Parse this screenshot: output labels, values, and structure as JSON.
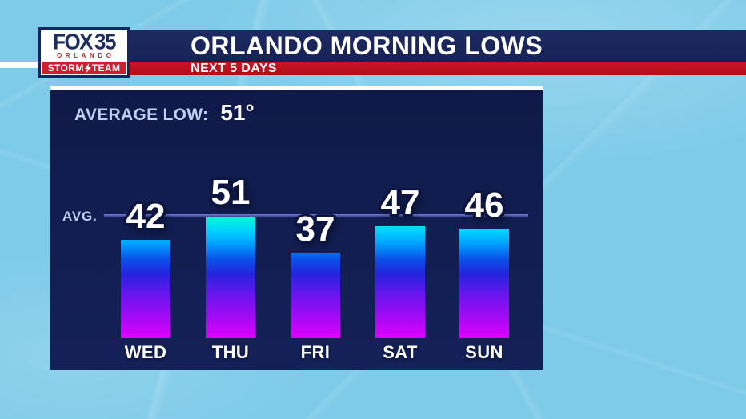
{
  "branding": {
    "station": "FOX",
    "channel": "35",
    "city": "ORLANDO",
    "storm": "STORM",
    "team": "TEAM",
    "bolt_icon": "lightning-bolt"
  },
  "header": {
    "title": "ORLANDO MORNING LOWS",
    "subtitle": "NEXT 5 DAYS"
  },
  "panel": {
    "average_label": "AVERAGE LOW:",
    "average_value": "51°",
    "avg_line_label": "AVG."
  },
  "chart_data": {
    "type": "bar",
    "title": "ORLANDO MORNING LOWS",
    "subtitle": "NEXT 5 DAYS",
    "categories": [
      "WED",
      "THU",
      "FRI",
      "SAT",
      "SUN"
    ],
    "values": [
      42,
      51,
      37,
      47,
      46
    ],
    "value_unit": "°F",
    "ylim": [
      4.6,
      56
    ],
    "grid": false,
    "legend": false,
    "avg_reference_line": {
      "label": "AVG.",
      "value": 51
    },
    "average_low_annotation": {
      "label": "AVERAGE LOW:",
      "value": "51°"
    },
    "bar_gradient_bottom_to_top": [
      "#e000ff",
      "#a50af5",
      "#6715ee",
      "#2524de",
      "#0b4fe8",
      "#00a0fe",
      "#00d2ff",
      "#00eee4",
      "#00ffaa"
    ]
  },
  "colors": {
    "background": "#7ecbe9",
    "panel_navy": "#101b4c",
    "title_bar_navy": "#1a2459",
    "banner_red": "#c01120",
    "storm_team_red": "#ce1f2f",
    "logo_navy": "#16255e",
    "periwinkle_text": "#bfd0f0",
    "avg_line": "#4b50ae",
    "text_white": "#ffffff"
  }
}
